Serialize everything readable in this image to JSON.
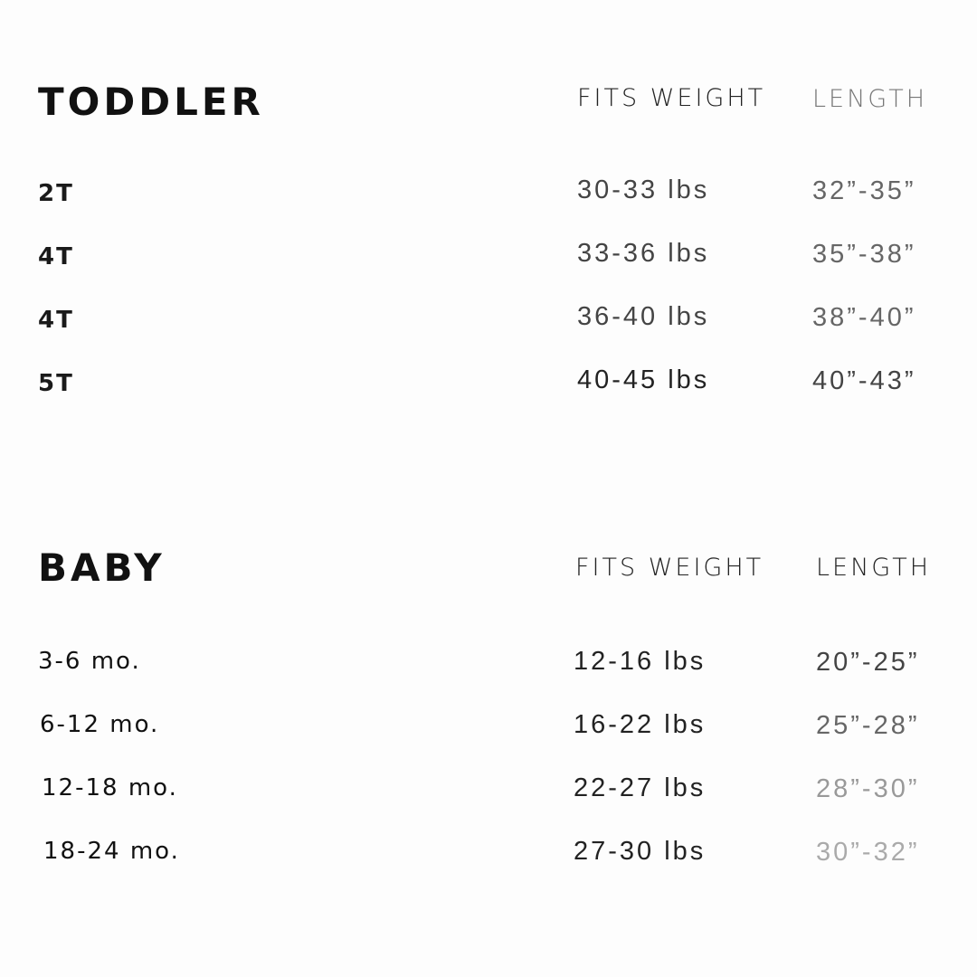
{
  "sections": [
    {
      "title": "TODDLER",
      "col_weight": "FITS WEIGHT",
      "col_length": "LENGTH",
      "rows": [
        {
          "size": "2T",
          "weight": "30-33 lbs",
          "length": "32”-35”"
        },
        {
          "size": "4T",
          "weight": "33-36 lbs",
          "length": "35”-38”"
        },
        {
          "size": "4T",
          "weight": "36-40 lbs",
          "length": "38”-40”"
        },
        {
          "size": "5T",
          "weight": "40-45 lbs",
          "length": "40”-43”"
        }
      ]
    },
    {
      "title": "BABY",
      "col_weight": "FITS WEIGHT",
      "col_length": "LENGTH",
      "rows": [
        {
          "size": "3-6 mo.",
          "weight": "12-16 lbs",
          "length": "20”-25”"
        },
        {
          "size": "6-12 mo.",
          "weight": "16-22 lbs",
          "length": "25”-28”"
        },
        {
          "size": "12-18 mo.",
          "weight": "22-27 lbs",
          "length": "28”-30”"
        },
        {
          "size": "18-24 mo.",
          "weight": "27-30 lbs",
          "length": "30”-32”"
        }
      ]
    }
  ]
}
